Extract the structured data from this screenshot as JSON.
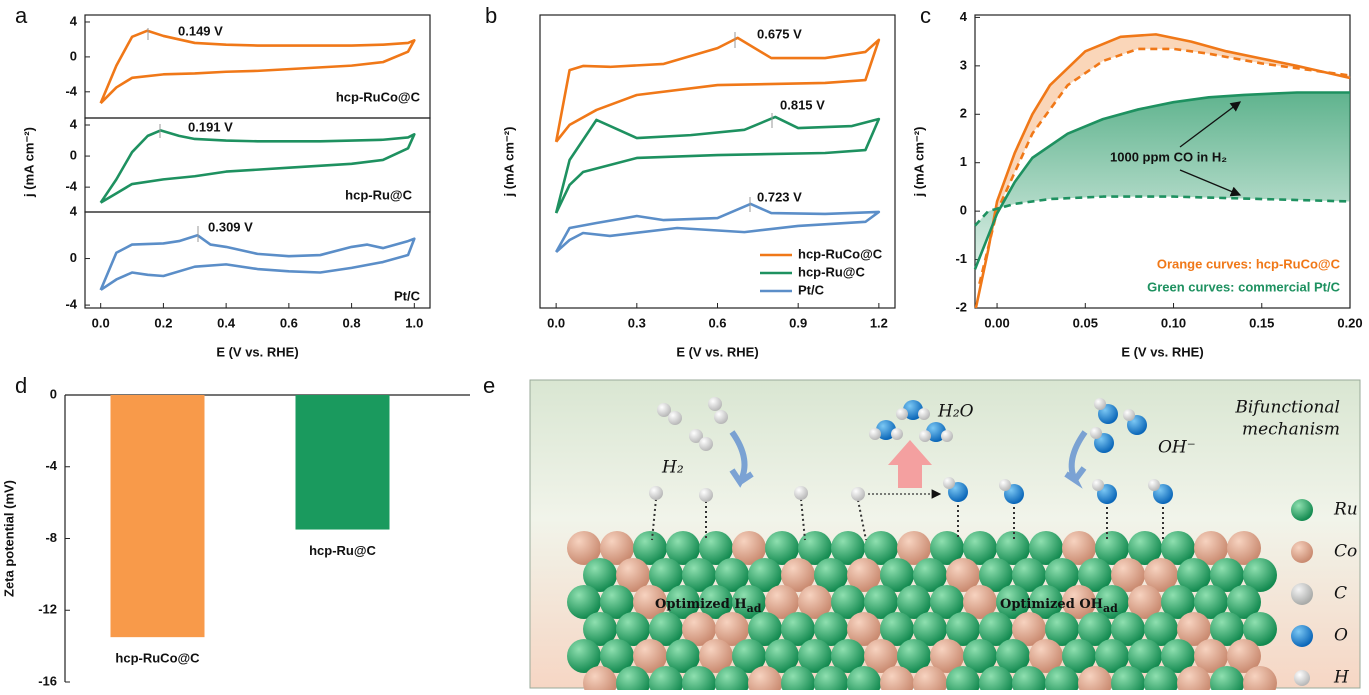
{
  "chart_data": [
    {
      "type": "line",
      "panel": "a",
      "xlim": [
        -0.05,
        1.05
      ],
      "ylim": [
        -7,
        4.8
      ],
      "yticks": [
        -4,
        0,
        4
      ],
      "series": [
        {
          "name": "hcp-RuCo@C",
          "color": "#f07818",
          "x": [
            0,
            0.05,
            0.1,
            0.149,
            0.2,
            0.3,
            0.4,
            0.5,
            0.6,
            0.7,
            0.8,
            0.9,
            0.98,
            1.0,
            0.98,
            0.9,
            0.8,
            0.7,
            0.6,
            0.5,
            0.4,
            0.3,
            0.2,
            0.1,
            0.05,
            0
          ],
          "values": [
            -5.3,
            -1,
            2.3,
            3,
            2.4,
            1.6,
            1.4,
            1.3,
            1.3,
            1.3,
            1.3,
            1.4,
            1.6,
            1.9,
            0.6,
            -0.6,
            -1,
            -1.2,
            -1.4,
            -1.6,
            -1.7,
            -1.9,
            -2.0,
            -2.4,
            -3.5,
            -5.3
          ]
        }
      ],
      "annotations": [
        "0.149 V"
      ]
    },
    {
      "type": "line",
      "panel": "",
      "xlim": [
        -0.05,
        1.05
      ],
      "ylim": [
        -7.2,
        4.9
      ],
      "yticks": [
        -4,
        0,
        4
      ],
      "ylabel": "j (mA cm⁻²)",
      "series": [
        {
          "name": "hcp-Ru@C",
          "color": "#1e9160",
          "x": [
            0,
            0.05,
            0.1,
            0.15,
            0.191,
            0.25,
            0.3,
            0.4,
            0.5,
            0.6,
            0.7,
            0.8,
            0.9,
            0.98,
            1.0,
            0.98,
            0.9,
            0.8,
            0.6,
            0.4,
            0.3,
            0.2,
            0.1,
            0.05,
            0
          ],
          "values": [
            -6,
            -3,
            0.5,
            2.6,
            3.3,
            2.6,
            2.2,
            2,
            1.9,
            1.9,
            1.9,
            2,
            2.1,
            2.4,
            2.8,
            1,
            -0.5,
            -1,
            -1.5,
            -2,
            -2.6,
            -3,
            -3.6,
            -4.8,
            -6
          ]
        }
      ],
      "annotations": [
        "0.191 V"
      ]
    },
    {
      "type": "line",
      "panel": "",
      "xlim": [
        -0.05,
        1.05
      ],
      "ylim": [
        -4.25,
        4
      ],
      "yticks": [
        -4,
        0,
        4
      ],
      "xticks": [
        {
          "value": 0,
          "label": "0.0"
        },
        0.2,
        0.4,
        0.6,
        0.8,
        {
          "value": 1,
          "label": "1.0"
        }
      ],
      "xlabel": "E (V vs. RHE)",
      "series": [
        {
          "name": "Pt/C",
          "color": "#5b8ec8",
          "x": [
            0,
            0.05,
            0.1,
            0.2,
            0.25,
            0.309,
            0.35,
            0.4,
            0.5,
            0.6,
            0.7,
            0.8,
            0.85,
            0.9,
            0.98,
            1.0,
            0.98,
            0.9,
            0.8,
            0.7,
            0.6,
            0.5,
            0.4,
            0.3,
            0.2,
            0.15,
            0.1,
            0.05,
            0
          ],
          "values": [
            -2.7,
            0.5,
            1.2,
            1.3,
            1.5,
            2,
            1.2,
            1.0,
            0.4,
            0.2,
            0.3,
            1.0,
            1.2,
            0.9,
            1.5,
            1.7,
            0.3,
            -0.3,
            -0.8,
            -1.2,
            -1.1,
            -0.9,
            -0.5,
            -0.7,
            -1.5,
            -1.4,
            -1.2,
            -1.8,
            -2.7
          ]
        }
      ],
      "annotations": [
        "0.309 V"
      ]
    },
    {
      "type": "line",
      "panel": "b",
      "xlim": [
        -0.06,
        1.26
      ],
      "ylim": [
        0,
        100
      ],
      "yticks": [],
      "xticks": [
        {
          "value": 0,
          "label": "0.0"
        },
        0.3,
        0.6,
        0.9,
        1.2
      ],
      "xlabel": "E (V vs. RHE)",
      "ylabel": "j (mA cm⁻²)",
      "legend": "lower right",
      "series": [
        {
          "name": "hcp-RuCo@C",
          "color": "#f07818",
          "x": [
            0,
            0.05,
            0.1,
            0.2,
            0.4,
            0.6,
            0.675,
            0.8,
            1.0,
            1.15,
            1.2,
            1.15,
            1.0,
            0.6,
            0.3,
            0.15,
            0.05,
            0
          ],
          "values": [
            56.7,
            81.2,
            82.6,
            82.3,
            83.3,
            88.7,
            92.2,
            85.3,
            85.3,
            87.4,
            91.5,
            77.8,
            76.8,
            76.1,
            72.7,
            67.6,
            62.5,
            56.7
          ]
        },
        {
          "name": "hcp-Ru@C",
          "color": "#1e9160",
          "x": [
            0,
            0.05,
            0.15,
            0.3,
            0.5,
            0.7,
            0.815,
            0.9,
            1.1,
            1.2,
            1.15,
            1.0,
            0.6,
            0.3,
            0.1,
            0.05,
            0
          ],
          "values": [
            32.4,
            50.5,
            64.2,
            58,
            59,
            60.8,
            65.2,
            61.4,
            62.1,
            64.5,
            53.9,
            52.9,
            52.2,
            51.2,
            46.4,
            42,
            32.4
          ]
        },
        {
          "name": "Pt/C",
          "color": "#5b8ec8",
          "x": [
            0,
            0.05,
            0.15,
            0.3,
            0.4,
            0.6,
            0.723,
            0.8,
            1.0,
            1.2,
            1.15,
            0.9,
            0.7,
            0.45,
            0.2,
            0.1,
            0.05,
            0
          ],
          "values": [
            19.1,
            27.3,
            29,
            31.4,
            30,
            30.7,
            35.5,
            32.4,
            32.1,
            32.8,
            29.4,
            28,
            25.9,
            27.3,
            24.6,
            25.6,
            23.2,
            19.1
          ]
        }
      ],
      "annotations": [
        "0.675 V",
        "0.815 V",
        "0.723 V"
      ]
    },
    {
      "type": "line",
      "panel": "c",
      "xlim": [
        -0.0125,
        0.2
      ],
      "ylim": [
        -2,
        4.05
      ],
      "yticks": [
        -2,
        -1,
        0,
        1,
        2,
        3,
        4
      ],
      "xticks": [
        {
          "value": 0,
          "label": "0.00"
        },
        0.05,
        {
          "value": 0.1,
          "label": "0.10"
        },
        0.15,
        {
          "value": 0.2,
          "label": "0.20"
        }
      ],
      "xlabel": "E (V vs. RHE)",
      "ylabel": "j (mA cm⁻²)",
      "shade_between": true,
      "series": [
        {
          "color": "#f07818",
          "dash": false,
          "x": [
            -0.012,
            -0.005,
            0,
            0.01,
            0.02,
            0.03,
            0.05,
            0.07,
            0.09,
            0.11,
            0.13,
            0.15,
            0.17,
            0.2
          ],
          "values": [
            -2,
            -0.8,
            0.2,
            1.2,
            2,
            2.6,
            3.3,
            3.6,
            3.65,
            3.5,
            3.3,
            3.15,
            3.0,
            2.75
          ]
        },
        {
          "color": "#f07818",
          "dash": true,
          "x": [
            -0.01,
            0,
            0.02,
            0.04,
            0.06,
            0.08,
            0.1,
            0.12,
            0.15,
            0.2
          ],
          "values": [
            -1.5,
            0,
            1.6,
            2.6,
            3.1,
            3.35,
            3.35,
            3.25,
            3.05,
            2.8
          ]
        },
        {
          "color": "#1e9160",
          "dash": false,
          "x": [
            -0.0125,
            0,
            0.01,
            0.02,
            0.04,
            0.06,
            0.08,
            0.1,
            0.12,
            0.14,
            0.17,
            0.2
          ],
          "values": [
            -1.2,
            -0.05,
            0.6,
            1.1,
            1.6,
            1.9,
            2.1,
            2.25,
            2.35,
            2.4,
            2.45,
            2.45
          ]
        },
        {
          "color": "#1e9160",
          "dash": true,
          "x": [
            -0.0125,
            -0.005,
            0,
            0.01,
            0.03,
            0.06,
            0.1,
            0.15,
            0.2
          ],
          "values": [
            -0.3,
            0,
            0.05,
            0.15,
            0.25,
            0.3,
            0.3,
            0.25,
            0.2
          ]
        }
      ],
      "annotations": [
        "1000 ppm CO in H₂",
        "Orange curves: hcp-RuCo@C",
        "Green curves: commercial Pt/C"
      ]
    },
    {
      "type": "bar",
      "panel": "d",
      "categories": [
        "hcp-RuCo@C",
        "hcp-Ru@C"
      ],
      "values": [
        -13.5,
        -7.5
      ],
      "colors": [
        "#f89a4a",
        "#1a9a5e"
      ],
      "ylim": [
        -16,
        0
      ],
      "yticks": [
        -16,
        -12,
        -8,
        -4,
        0
      ],
      "ylabel": "Zeta potential (mV)"
    }
  ],
  "diagram": {
    "panel": "e",
    "title": [
      "Bifunctional",
      "mechanism"
    ],
    "molecules": [
      "H₂",
      "H₂O",
      "OH⁻"
    ],
    "regions": [
      {
        "text": "Optimized H",
        "subscript": "ad"
      },
      {
        "text": "Optimized OH",
        "subscript": "ad"
      }
    ],
    "legend": [
      "Ru",
      "Co",
      "C",
      "O",
      "H"
    ]
  }
}
